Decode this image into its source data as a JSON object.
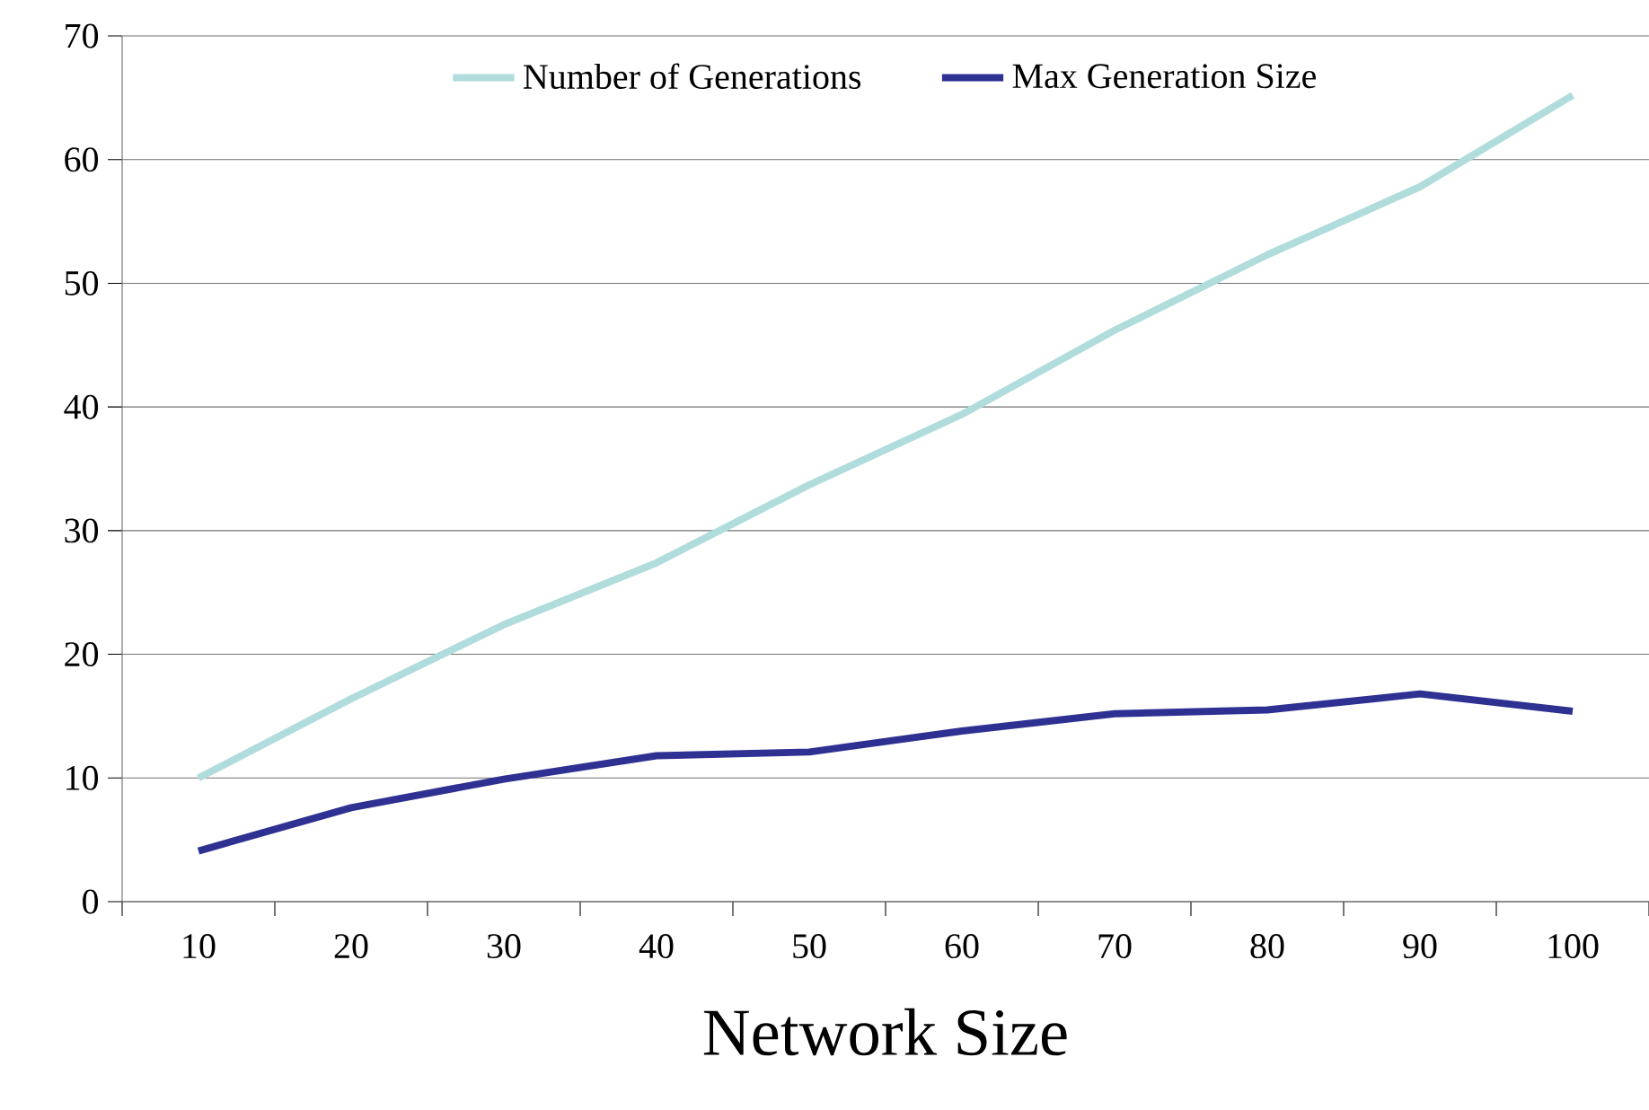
{
  "chart_data": {
    "type": "line",
    "xlabel": "Network Size",
    "categories": [
      "10",
      "20",
      "30",
      "40",
      "50",
      "60",
      "70",
      "80",
      "90",
      "100"
    ],
    "series": [
      {
        "name": "Number of Generations",
        "color": "#b0dcdc",
        "values": [
          10.0,
          16.4,
          22.4,
          27.4,
          33.7,
          39.4,
          46.2,
          52.3,
          57.8,
          65.2
        ]
      },
      {
        "name": "Max Generation Size",
        "color": "#2e3192",
        "values": [
          4.1,
          7.6,
          9.9,
          11.8,
          12.1,
          13.8,
          15.2,
          15.5,
          16.8,
          15.4
        ]
      }
    ],
    "ylim": [
      0,
      70
    ],
    "yticks": [
      0,
      10,
      20,
      30,
      40,
      50,
      60,
      70
    ],
    "grid": "y",
    "legend": "top",
    "marker": "none",
    "line_style": "solid"
  }
}
